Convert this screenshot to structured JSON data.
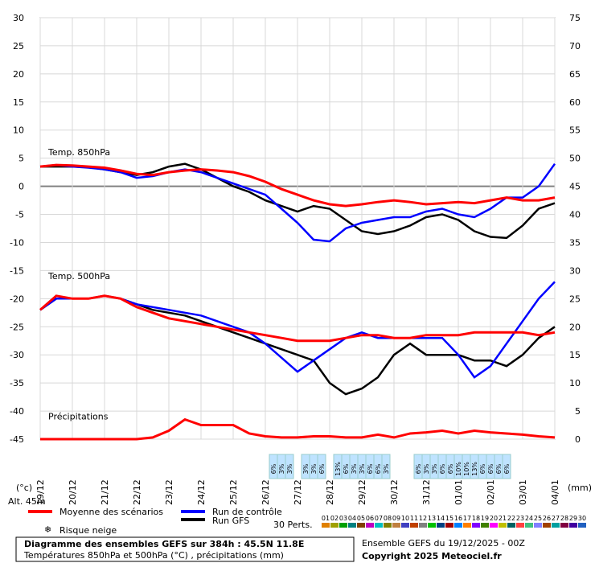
{
  "chart_data": {
    "type": "line",
    "xlim": [
      0,
      384
    ],
    "xticks": [
      {
        "value": 0,
        "label": "19/12"
      },
      {
        "value": 24,
        "label": "20/12"
      },
      {
        "value": 48,
        "label": "21/12"
      },
      {
        "value": 72,
        "label": "22/12"
      },
      {
        "value": 96,
        "label": "23/12"
      },
      {
        "value": 120,
        "label": "24/12"
      },
      {
        "value": 144,
        "label": "25/12"
      },
      {
        "value": 168,
        "label": "26/12"
      },
      {
        "value": 192,
        "label": "27/12"
      },
      {
        "value": 216,
        "label": "28/12"
      },
      {
        "value": 240,
        "label": "29/12"
      },
      {
        "value": 264,
        "label": "30/12"
      },
      {
        "value": 288,
        "label": "31/12"
      },
      {
        "value": 312,
        "label": "01/01"
      },
      {
        "value": 336,
        "label": "02/01"
      },
      {
        "value": 360,
        "label": "03/01"
      },
      {
        "value": 384,
        "label": "04/01"
      }
    ],
    "ylim": [
      -45,
      30
    ],
    "yticks": [
      -45,
      -40,
      -35,
      -30,
      -25,
      -20,
      -15,
      -10,
      -5,
      0,
      5,
      10,
      15,
      20,
      25,
      30
    ],
    "y2lim": [
      0,
      75
    ],
    "y2ticks": [
      0,
      5,
      10,
      15,
      20,
      25,
      30,
      35,
      40,
      45,
      50,
      55,
      60,
      65,
      70,
      75
    ],
    "ylabel": "(°c)",
    "y2label": "(mm)",
    "grid": true,
    "annotations": [
      "Temp. 850hPa",
      "Temp. 500hPa",
      "Précipitations",
      "Alt. 45m"
    ],
    "x": [
      0,
      12,
      24,
      36,
      48,
      60,
      72,
      84,
      96,
      108,
      120,
      132,
      144,
      156,
      168,
      180,
      192,
      204,
      216,
      228,
      240,
      252,
      264,
      276,
      288,
      300,
      312,
      324,
      336,
      348,
      360,
      372,
      384
    ],
    "series": [
      {
        "name": "Moyenne des scénarios",
        "color": "#ff0000",
        "t850": [
          3.5,
          3.8,
          3.7,
          3.5,
          3.3,
          2.8,
          2.2,
          2.0,
          2.5,
          2.8,
          3.0,
          2.8,
          2.5,
          1.8,
          0.8,
          -0.5,
          -1.5,
          -2.5,
          -3.2,
          -3.5,
          -3.2,
          -2.8,
          -2.5,
          -2.8,
          -3.2,
          -3.0,
          -2.8,
          -3.0,
          -2.5,
          -2.0,
          -2.5,
          -2.5,
          -2.0
        ],
        "t500": [
          -22,
          -19.5,
          -20,
          -20,
          -19.5,
          -20,
          -21.5,
          -22.5,
          -23.5,
          -24,
          -24.5,
          -25,
          -25.5,
          -26,
          -26.5,
          -27,
          -27.5,
          -27.5,
          -27.5,
          -27,
          -26.5,
          -26.5,
          -27,
          -27,
          -26.5,
          -26.5,
          -26.5,
          -26,
          -26,
          -26,
          -26,
          -26.5,
          -26
        ],
        "precip": [
          0,
          0,
          0,
          0,
          0,
          0,
          0,
          0.3,
          1.5,
          3.5,
          2.5,
          2.5,
          2.5,
          1,
          0.5,
          0.3,
          0.3,
          0.5,
          0.5,
          0.3,
          0.3,
          0.8,
          0.3,
          1,
          1.2,
          1.5,
          1,
          1.5,
          1.2,
          1,
          0.8,
          0.5,
          0.3
        ]
      },
      {
        "name": "Run de contrôle",
        "color": "#0000ff",
        "t850": [
          3.5,
          3.8,
          3.5,
          3.3,
          3,
          2.5,
          1.5,
          1.8,
          2.5,
          3.0,
          2.5,
          1.5,
          0.5,
          -0.5,
          -1.5,
          -4,
          -6.5,
          -9.5,
          -9.8,
          -7.5,
          -6.5,
          -6,
          -5.5,
          -5.5,
          -4.5,
          -4,
          -5,
          -5.5,
          -4,
          -2,
          -2,
          0,
          4
        ],
        "t500": [
          -22,
          -20,
          -20,
          -20,
          -19.5,
          -20,
          -21,
          -21.5,
          -22,
          -22.5,
          -23,
          -24,
          -25,
          -26,
          -28,
          -30.5,
          -33,
          -31,
          -29,
          -27,
          -26,
          -27,
          -27,
          -27,
          -27,
          -27,
          -30,
          -34,
          -32,
          -28,
          -24,
          -20,
          -17
        ]
      },
      {
        "name": "Run GFS",
        "color": "#000000",
        "t850": [
          3.5,
          3.5,
          3.5,
          3.4,
          3,
          2.5,
          2.0,
          2.5,
          3.5,
          4.0,
          3.0,
          1.5,
          0,
          -1,
          -2.5,
          -3.5,
          -4.5,
          -3.5,
          -4,
          -6,
          -8,
          -8.5,
          -8,
          -7,
          -5.5,
          -5,
          -6,
          -8,
          -9,
          -9.2,
          -7,
          -4,
          -3
        ],
        "t500": [
          -22,
          -20,
          -20,
          -20,
          -19.5,
          -20,
          -21,
          -22,
          -22.5,
          -23,
          -24,
          -25,
          -26,
          -27,
          -28,
          -29,
          -30,
          -31,
          -35,
          -37,
          -36,
          -34,
          -30,
          -28,
          -30,
          -30,
          -30,
          -31,
          -31,
          -32,
          -30,
          -27,
          -25
        ]
      }
    ],
    "snow_risk": {
      "name": "Risque neige",
      "x": [
        174,
        180,
        186,
        198,
        204,
        210,
        222,
        228,
        234,
        240,
        246,
        252,
        258,
        282,
        288,
        294,
        300,
        306,
        312,
        318,
        324,
        330,
        336,
        342,
        348
      ],
      "values": [
        6,
        3,
        3,
        3,
        3,
        6,
        13,
        6,
        3,
        3,
        6,
        6,
        3,
        6,
        3,
        3,
        6,
        6,
        10,
        10,
        13,
        6,
        6,
        6,
        6
      ],
      "value_labels": [
        "6%",
        "3%",
        "3%",
        "3%",
        "3%",
        "6%",
        "13%",
        "6%",
        "3%",
        "3%",
        "6%",
        "6%",
        "3%",
        "6%",
        "3%",
        "3%",
        "6%",
        "6%",
        "10%",
        "10%",
        "13%",
        "6%",
        "6%",
        "6%",
        "6%"
      ]
    },
    "perturbations": {
      "label": "30 Perts.",
      "names": [
        "01",
        "02",
        "03",
        "04",
        "05",
        "06",
        "07",
        "08",
        "09",
        "10",
        "11",
        "12",
        "13",
        "14",
        "15",
        "16",
        "17",
        "18",
        "19",
        "20",
        "21",
        "22",
        "23",
        "24",
        "25",
        "26",
        "27",
        "28",
        "29",
        "30"
      ],
      "colors": [
        "#e08000",
        "#a0a000",
        "#00a000",
        "#008080",
        "#804000",
        "#c000c0",
        "#00c0c0",
        "#808000",
        "#c08040",
        "#4040c0",
        "#c04000",
        "#808080",
        "#00c000",
        "#004080",
        "#a00000",
        "#0080ff",
        "#ff8000",
        "#8000ff",
        "#408000",
        "#ff00ff",
        "#c0c000",
        "#006060",
        "#ff4040",
        "#40c080",
        "#8080ff",
        "#a04000",
        "#00a0a0",
        "#800040",
        "#4000a0",
        "#2060c0"
      ]
    },
    "title": "Diagramme des ensembles GEFS sur 384h : 45.5N 11.8E",
    "subtitle": "Températures 850hPa et 500hPa (°C) , précipitations (mm)",
    "run_info": "Ensemble GEFS du 19/12/2025 - 00Z",
    "copyright": "Copyright 2025 Meteociel.fr"
  }
}
